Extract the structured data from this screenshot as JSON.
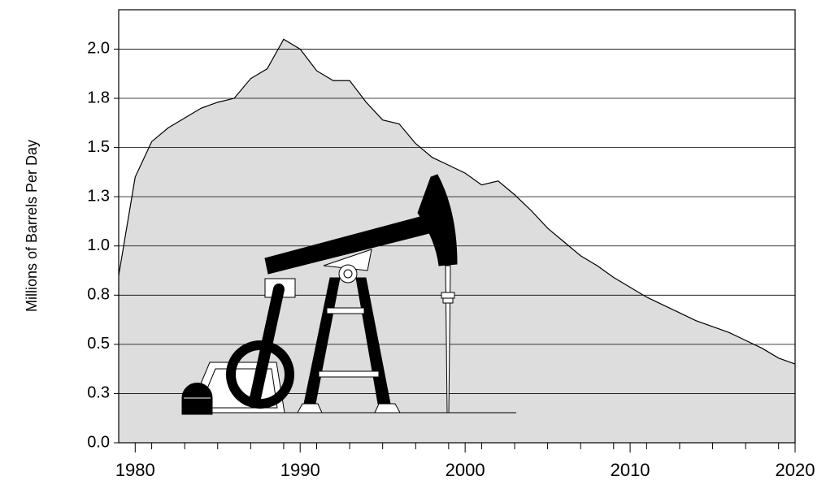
{
  "chart_data": {
    "type": "area",
    "y_label": "Millions of Barrels Per Day",
    "x": [
      1979,
      1980,
      1981,
      1982,
      1983,
      1984,
      1985,
      1986,
      1987,
      1988,
      1989,
      1990,
      1991,
      1992,
      1993,
      1994,
      1995,
      1996,
      1997,
      1998,
      1999,
      2000,
      2001,
      2002,
      2003,
      2004,
      2005,
      2006,
      2007,
      2008,
      2009,
      2010,
      2011,
      2012,
      2013,
      2014,
      2015,
      2016,
      2017,
      2018,
      2019,
      2020
    ],
    "values": [
      0.85,
      1.35,
      1.53,
      1.6,
      1.65,
      1.7,
      1.73,
      1.75,
      1.85,
      1.9,
      2.05,
      2.0,
      1.89,
      1.84,
      1.84,
      1.73,
      1.64,
      1.62,
      1.52,
      1.45,
      1.41,
      1.37,
      1.31,
      1.33,
      1.26,
      1.18,
      1.09,
      1.02,
      0.95,
      0.9,
      0.84,
      0.79,
      0.74,
      0.7,
      0.66,
      0.62,
      0.59,
      0.56,
      0.52,
      0.48,
      0.43,
      0.4
    ],
    "color": "#dddddd",
    "xlim": [
      1979,
      2020
    ],
    "xticks": [
      1980,
      1990,
      2000,
      2010,
      2020
    ],
    "xminorticks": [
      1981,
      1983,
      1985,
      1987,
      1989,
      1991,
      1993,
      1995,
      1997,
      1999,
      2001,
      2003,
      2005,
      2007,
      2009,
      2011,
      2013,
      2015,
      2017,
      2019
    ],
    "ylim": [
      0,
      2.2
    ],
    "yticks": [
      {
        "value": 0,
        "label": "0.0"
      },
      {
        "value": 0.25,
        "label": "0.3"
      },
      0.5,
      {
        "value": 0.75,
        "label": "0.8"
      },
      {
        "value": 1,
        "label": "1.0"
      },
      {
        "value": 1.25,
        "label": "1.3"
      },
      1.5,
      {
        "value": 1.75,
        "label": "1.8"
      },
      {
        "value": 2,
        "label": "2.0"
      }
    ],
    "grid": true
  }
}
